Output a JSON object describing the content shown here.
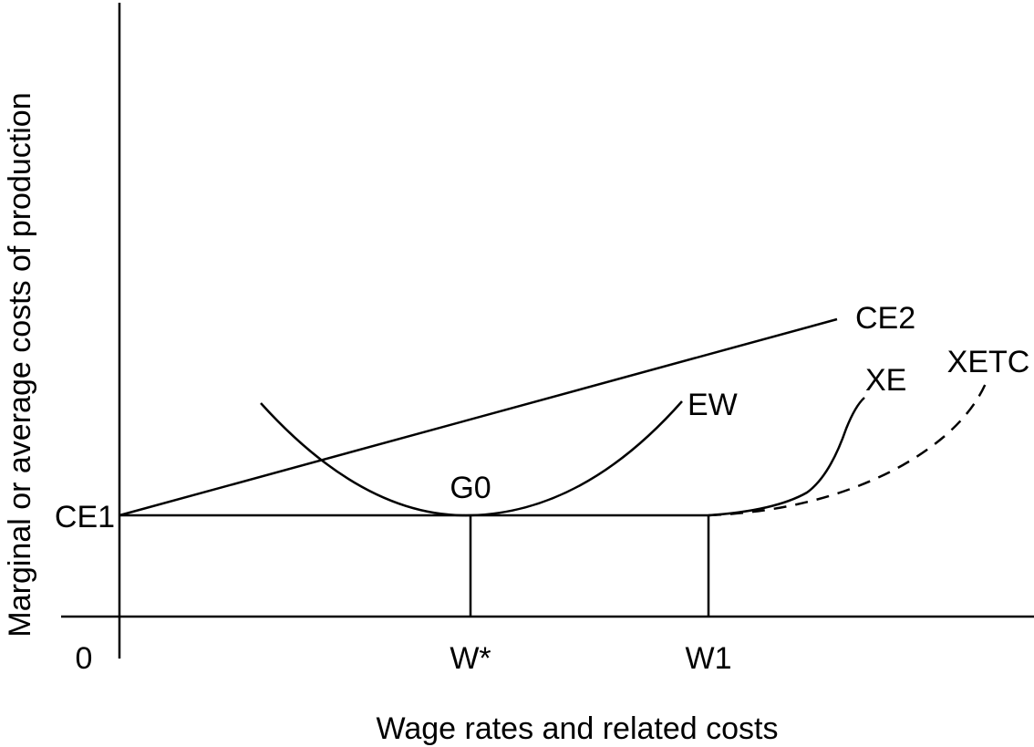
{
  "axes": {
    "y_label": "Marginal or average costs of production",
    "x_label": "Wage rates and related costs",
    "origin_label": "0"
  },
  "y_markers": {
    "ce1": "CE1"
  },
  "x_markers": {
    "w_star": "W*",
    "w1": "W1"
  },
  "curves": {
    "ce2": "CE2",
    "ew": "EW",
    "g0": "G0",
    "xe": "XE",
    "xetc": "XETC"
  },
  "colors": {
    "line": "#000000",
    "background": "#ffffff"
  }
}
